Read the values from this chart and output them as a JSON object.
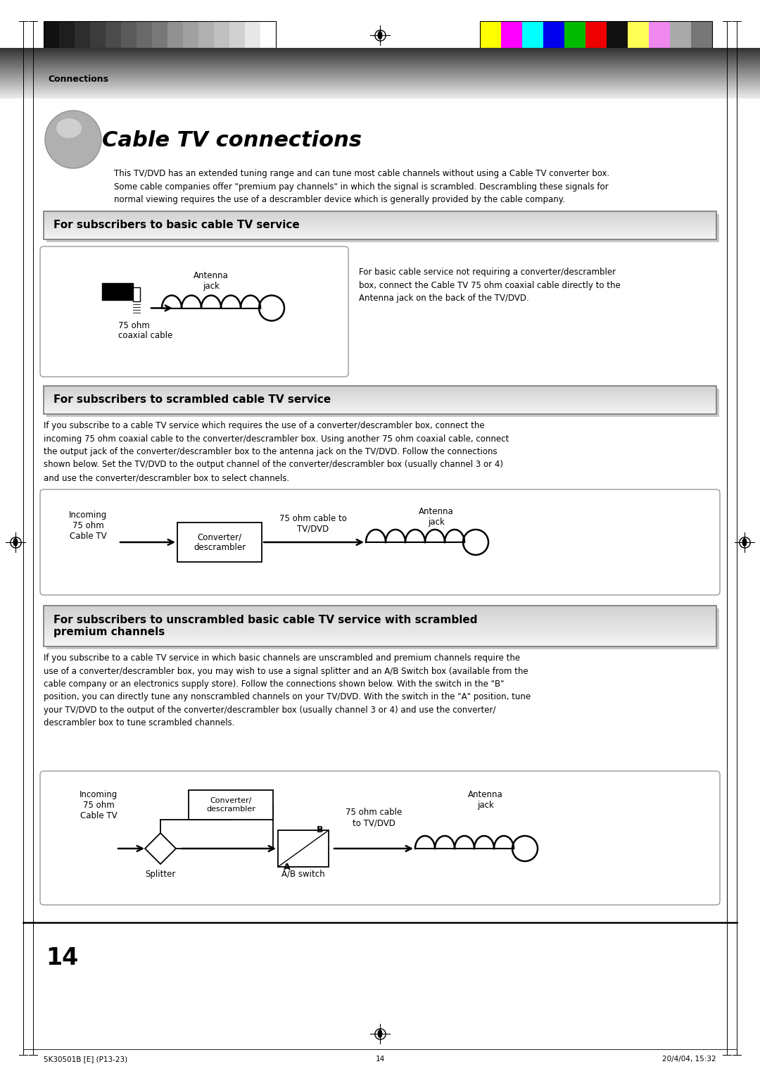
{
  "page_bg": "#ffffff",
  "connections_label": "Connections",
  "title": "Cable TV connections",
  "intro_text": "This TV/DVD has an extended tuning range and can tune most cable channels without using a Cable TV converter box.\nSome cable companies offer \"premium pay channels\" in which the signal is scrambled. Descrambling these signals for\nnormal viewing requires the use of a descrambler device which is generally provided by the cable company.",
  "section1_title": "For subscribers to basic cable TV service",
  "section1_desc": "For basic cable service not requiring a converter/descrambler\nbox, connect the Cable TV 75 ohm coaxial cable directly to the\nAntenna jack on the back of the TV/DVD.",
  "section1_antenna_label": "Antenna\njack",
  "section1_cable_label": "75 ohm\ncoaxial cable",
  "section2_title": "For subscribers to scrambled cable TV service",
  "section2_para": "If you subscribe to a cable TV service which requires the use of a converter/descrambler box, connect the\nincoming 75 ohm coaxial cable to the converter/descrambler box. Using another 75 ohm coaxial cable, connect\nthe output jack of the converter/descrambler box to the antenna jack on the TV/DVD. Follow the connections\nshown below. Set the TV/DVD to the output channel of the converter/descrambler box (usually channel 3 or 4)\nand use the converter/descrambler box to select channels.",
  "section2_incoming_label": "Incoming\n75 ohm\nCable TV",
  "section2_converter_label": "Converter/\ndescrambler",
  "section2_cable_to_label": "75 ohm cable to\nTV/DVD",
  "section2_antenna_label": "Antenna\njack",
  "section3_title": "For subscribers to unscrambled basic cable TV service with scrambled\npremium channels",
  "section3_para": "If you subscribe to a cable TV service in which basic channels are unscrambled and premium channels require the\nuse of a converter/descrambler box, you may wish to use a signal splitter and an A/B Switch box (available from the\ncable company or an electronics supply store). Follow the connections shown below. With the switch in the \"B\"\nposition, you can directly tune any nonscrambled channels on your TV/DVD. With the switch in the \"A\" position, tune\nyour TV/DVD to the output of the converter/descrambler box (usually channel 3 or 4) and use the converter/\ndescrambler box to tune scrambled channels.",
  "section3_incoming_label": "Incoming\n75 ohm\nCable TV",
  "section3_converter_label": "Converter/\ndescrambler",
  "section3_splitter_label": "Splitter",
  "section3_ab_label": "A/B switch",
  "section3_cable_to_label": "75 ohm cable\nto TV/DVD",
  "section3_antenna_label": "Antenna\njack",
  "page_number": "14",
  "footer_left": "5K30501B [E] (P13-23)",
  "footer_center": "14",
  "footer_right": "20/4/04, 15:32",
  "color_bars_left": [
    "#111111",
    "#1e1e1e",
    "#2d2d2d",
    "#3c3c3c",
    "#4b4b4b",
    "#5a5a5a",
    "#696969",
    "#787878",
    "#909090",
    "#a0a0a0",
    "#b0b0b0",
    "#c0c0c0",
    "#d0d0d0",
    "#e8e8e8",
    "#ffffff"
  ],
  "color_bars_right": [
    "#ffff00",
    "#ff00ff",
    "#00ffff",
    "#0000ee",
    "#00bb00",
    "#ee0000",
    "#111111",
    "#ffff55",
    "#ee88ee",
    "#aaaaaa",
    "#777777"
  ]
}
